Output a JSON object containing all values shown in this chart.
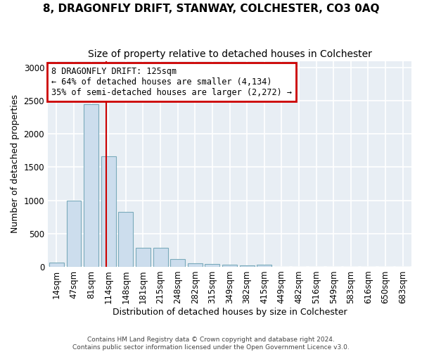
{
  "title": "8, DRAGONFLY DRIFT, STANWAY, COLCHESTER, CO3 0AQ",
  "subtitle": "Size of property relative to detached houses in Colchester",
  "xlabel": "Distribution of detached houses by size in Colchester",
  "ylabel": "Number of detached properties",
  "categories": [
    "14sqm",
    "47sqm",
    "81sqm",
    "114sqm",
    "148sqm",
    "181sqm",
    "215sqm",
    "248sqm",
    "282sqm",
    "315sqm",
    "349sqm",
    "382sqm",
    "415sqm",
    "449sqm",
    "482sqm",
    "516sqm",
    "549sqm",
    "583sqm",
    "616sqm",
    "650sqm",
    "683sqm"
  ],
  "bar_values": [
    60,
    1000,
    2450,
    1660,
    830,
    290,
    285,
    120,
    55,
    45,
    30,
    20,
    30,
    0,
    0,
    0,
    0,
    0,
    0,
    0,
    0
  ],
  "bar_color": "#ccdded",
  "bar_edge_color": "#7aaabb",
  "property_line_x": 2.88,
  "annotation_line1": "8 DRAGONFLY DRIFT: 125sqm",
  "annotation_line2": "← 64% of detached houses are smaller (4,134)",
  "annotation_line3": "35% of semi-detached houses are larger (2,272) →",
  "annotation_box_color": "#ffffff",
  "annotation_box_edge_color": "#cc0000",
  "vline_color": "#cc0000",
  "fig_background_color": "#ffffff",
  "plot_background_color": "#e8eef4",
  "grid_color": "#ffffff",
  "footer_line1": "Contains HM Land Registry data © Crown copyright and database right 2024.",
  "footer_line2": "Contains public sector information licensed under the Open Government Licence v3.0.",
  "ylim": [
    0,
    3100
  ],
  "title_fontsize": 11,
  "subtitle_fontsize": 10,
  "axis_label_fontsize": 9,
  "tick_fontsize": 8.5
}
